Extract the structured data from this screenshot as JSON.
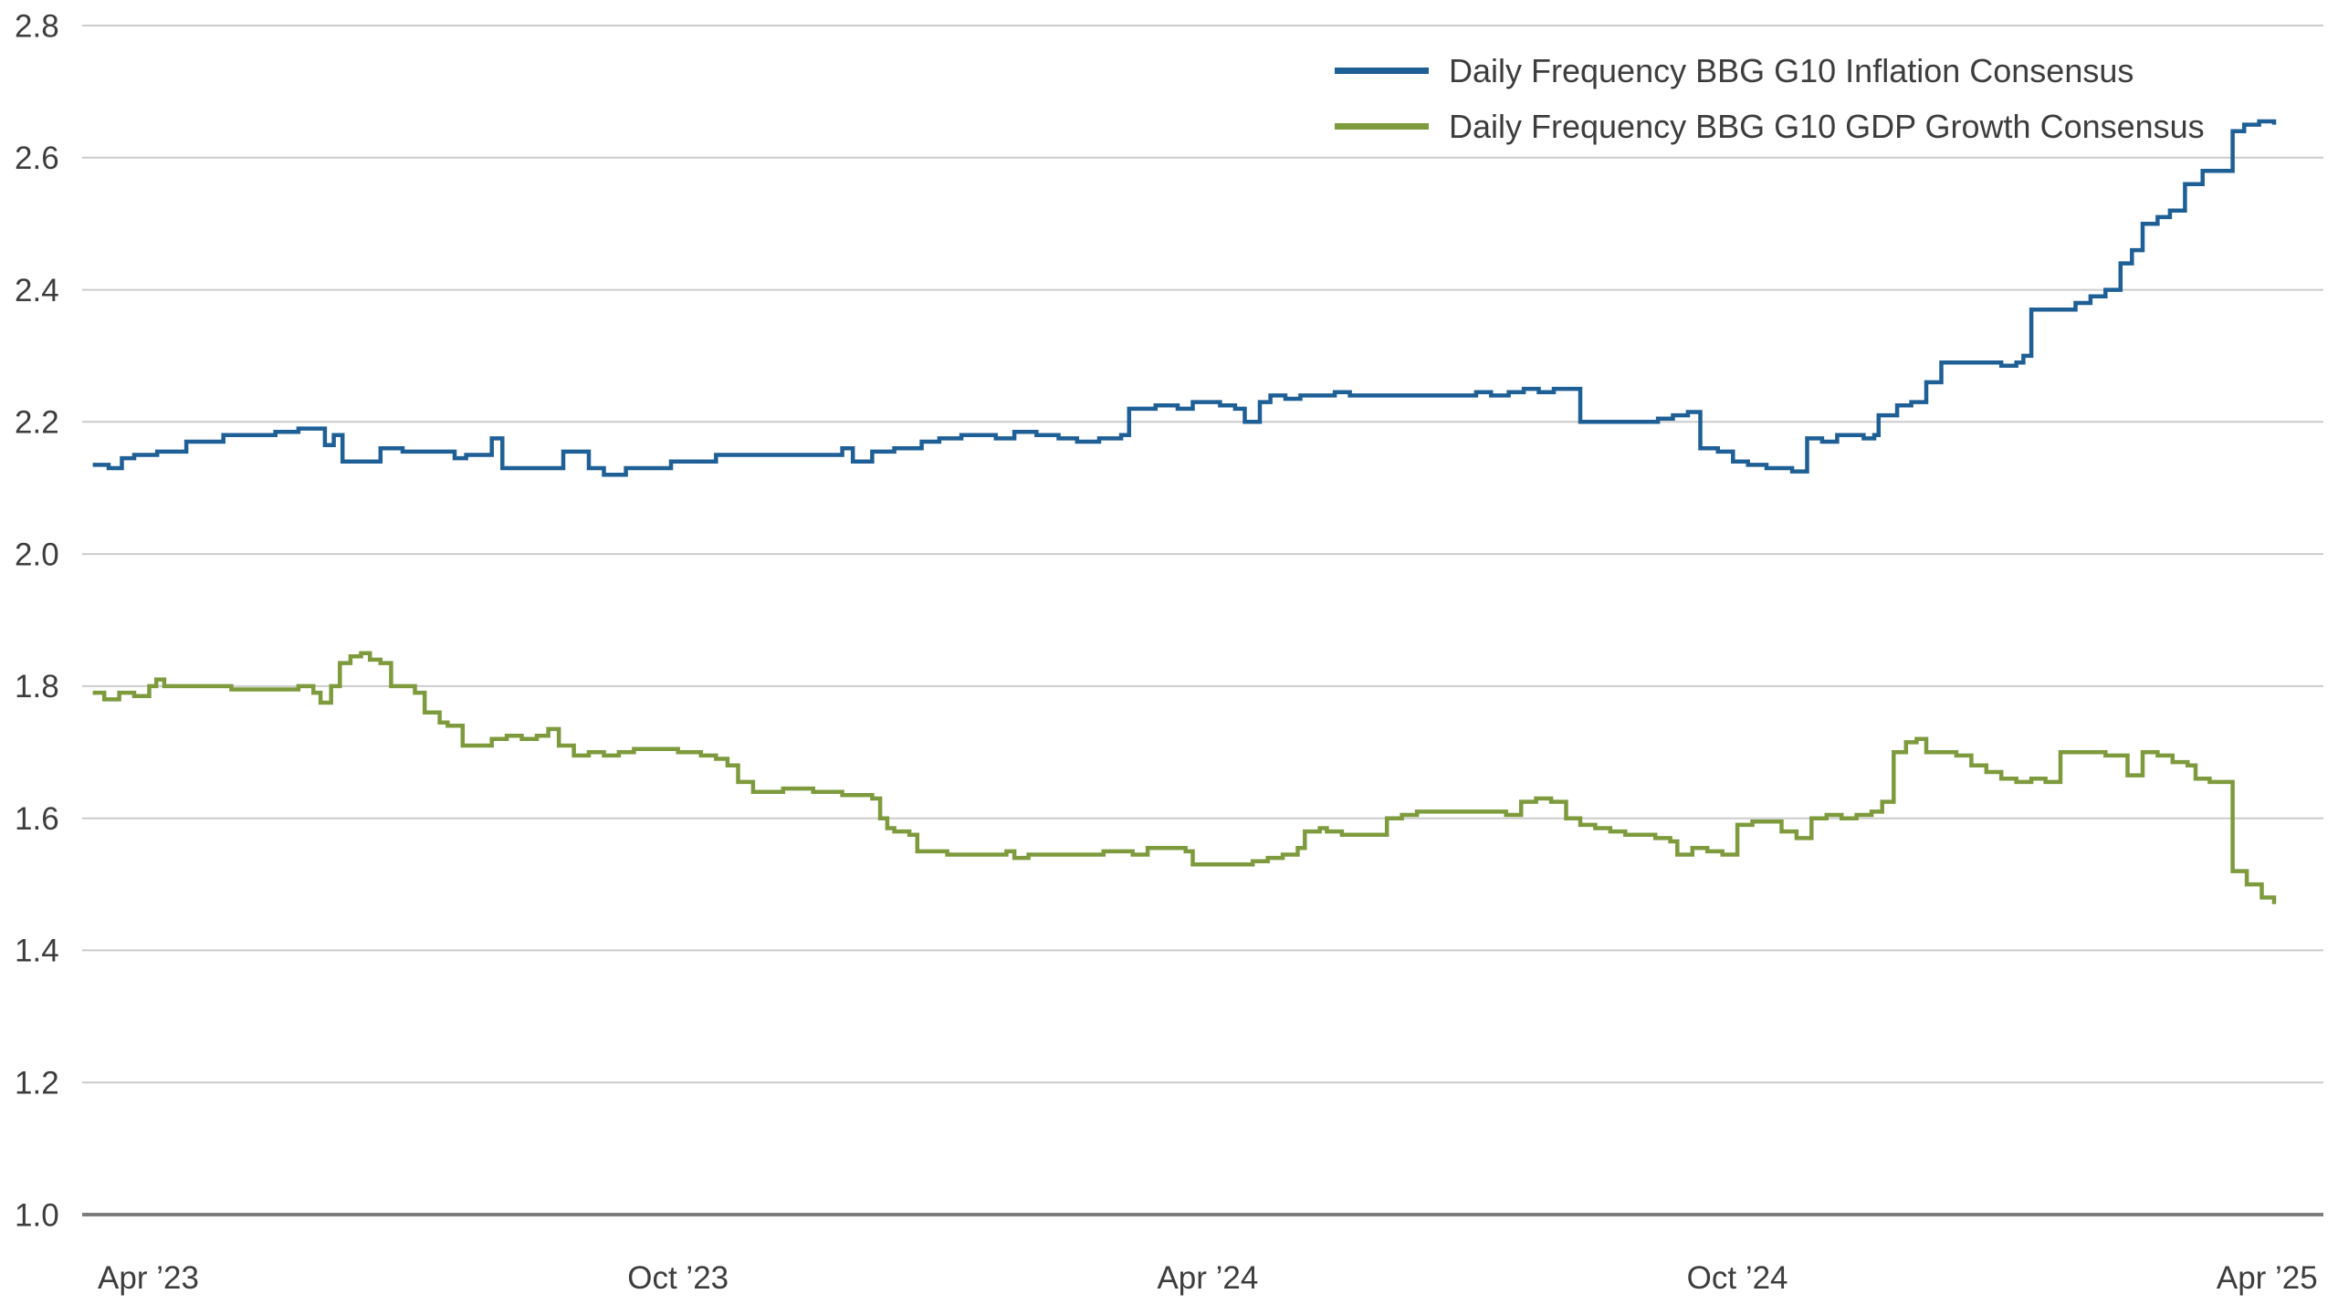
{
  "chart_data": {
    "type": "line",
    "title": "",
    "xlabel": "",
    "ylabel": "",
    "grid": "horizontal",
    "legend_position": "top-right-inside",
    "interpolation": "step-after",
    "x_unit": "months_since_apr_2023",
    "xlim": [
      -0.75,
      24.65
    ],
    "ylim": [
      1.0,
      2.8
    ],
    "y_ticks": [
      1.0,
      1.2,
      1.4,
      1.6,
      1.8,
      2.0,
      2.2,
      2.4,
      2.6,
      2.8
    ],
    "x_ticks": [
      {
        "m": 0,
        "label": "Apr ’23"
      },
      {
        "m": 6,
        "label": "Oct ’23"
      },
      {
        "m": 12,
        "label": "Apr ’24"
      },
      {
        "m": 18,
        "label": "Oct ’24"
      },
      {
        "m": 24,
        "label": "Apr ’25"
      }
    ],
    "colors": {
      "inflation_line": "#1e5f96",
      "gdp_line": "#7d9b3d",
      "gridline": "#cbcbcb",
      "axis_baseline": "#7d7d7d",
      "tick_text": "#3d3d3d"
    },
    "series": [
      {
        "name": "Daily Frequency BBG G10 Inflation Consensus",
        "color": "#1e5f96",
        "points": [
          [
            -0.63,
            2.135
          ],
          [
            -0.45,
            2.13
          ],
          [
            -0.3,
            2.145
          ],
          [
            -0.16,
            2.15
          ],
          [
            0.1,
            2.155
          ],
          [
            0.43,
            2.17
          ],
          [
            0.85,
            2.18
          ],
          [
            1.44,
            2.185
          ],
          [
            1.7,
            2.19
          ],
          [
            2.0,
            2.165
          ],
          [
            2.1,
            2.18
          ],
          [
            2.2,
            2.14
          ],
          [
            2.63,
            2.16
          ],
          [
            2.88,
            2.155
          ],
          [
            3.13,
            2.155
          ],
          [
            3.47,
            2.145
          ],
          [
            3.6,
            2.15
          ],
          [
            3.89,
            2.175
          ],
          [
            4.01,
            2.13
          ],
          [
            4.57,
            2.13
          ],
          [
            4.7,
            2.155
          ],
          [
            4.99,
            2.13
          ],
          [
            5.16,
            2.12
          ],
          [
            5.41,
            2.13
          ],
          [
            5.92,
            2.14
          ],
          [
            6.43,
            2.15
          ],
          [
            7.53,
            2.15
          ],
          [
            7.86,
            2.16
          ],
          [
            7.98,
            2.14
          ],
          [
            8.2,
            2.155
          ],
          [
            8.45,
            2.16
          ],
          [
            8.76,
            2.17
          ],
          [
            8.96,
            2.175
          ],
          [
            9.21,
            2.18
          ],
          [
            9.6,
            2.175
          ],
          [
            9.81,
            2.185
          ],
          [
            10.06,
            2.18
          ],
          [
            10.31,
            2.175
          ],
          [
            10.52,
            2.17
          ],
          [
            10.77,
            2.175
          ],
          [
            11.02,
            2.18
          ],
          [
            11.11,
            2.22
          ],
          [
            11.41,
            2.225
          ],
          [
            11.66,
            2.22
          ],
          [
            11.83,
            2.23
          ],
          [
            12.14,
            2.225
          ],
          [
            12.31,
            2.22
          ],
          [
            12.42,
            2.2
          ],
          [
            12.59,
            2.23
          ],
          [
            12.71,
            2.24
          ],
          [
            12.88,
            2.235
          ],
          [
            13.05,
            2.24
          ],
          [
            13.44,
            2.245
          ],
          [
            13.61,
            2.24
          ],
          [
            15.04,
            2.245
          ],
          [
            15.21,
            2.24
          ],
          [
            15.41,
            2.245
          ],
          [
            15.58,
            2.25
          ],
          [
            15.75,
            2.245
          ],
          [
            15.92,
            2.25
          ],
          [
            16.14,
            2.25
          ],
          [
            16.22,
            2.2
          ],
          [
            16.9,
            2.2
          ],
          [
            17.1,
            2.205
          ],
          [
            17.27,
            2.21
          ],
          [
            17.44,
            2.215
          ],
          [
            17.58,
            2.16
          ],
          [
            17.78,
            2.155
          ],
          [
            17.95,
            2.14
          ],
          [
            18.12,
            2.135
          ],
          [
            18.33,
            2.13
          ],
          [
            18.62,
            2.125
          ],
          [
            18.79,
            2.175
          ],
          [
            18.96,
            2.17
          ],
          [
            19.13,
            2.18
          ],
          [
            19.43,
            2.175
          ],
          [
            19.55,
            2.18
          ],
          [
            19.6,
            2.21
          ],
          [
            19.81,
            2.225
          ],
          [
            19.97,
            2.23
          ],
          [
            20.14,
            2.26
          ],
          [
            20.31,
            2.29
          ],
          [
            20.99,
            2.285
          ],
          [
            21.16,
            2.29
          ],
          [
            21.24,
            2.3
          ],
          [
            21.33,
            2.37
          ],
          [
            21.83,
            2.38
          ],
          [
            22.0,
            2.39
          ],
          [
            22.17,
            2.4
          ],
          [
            22.34,
            2.44
          ],
          [
            22.47,
            2.46
          ],
          [
            22.59,
            2.5
          ],
          [
            22.76,
            2.51
          ],
          [
            22.9,
            2.52
          ],
          [
            23.07,
            2.56
          ],
          [
            23.27,
            2.58
          ],
          [
            23.49,
            2.58
          ],
          [
            23.61,
            2.64
          ],
          [
            23.74,
            2.65
          ],
          [
            23.91,
            2.655
          ],
          [
            24.08,
            2.65
          ]
        ]
      },
      {
        "name": "Daily Frequency BBG G10 GDP Growth Consensus",
        "color": "#7d9b3d",
        "points": [
          [
            -0.63,
            1.79
          ],
          [
            -0.5,
            1.78
          ],
          [
            -0.33,
            1.79
          ],
          [
            -0.16,
            1.785
          ],
          [
            0.01,
            1.8
          ],
          [
            0.09,
            1.81
          ],
          [
            0.18,
            1.8
          ],
          [
            0.94,
            1.795
          ],
          [
            1.7,
            1.8
          ],
          [
            1.87,
            1.79
          ],
          [
            1.95,
            1.775
          ],
          [
            2.07,
            1.8
          ],
          [
            2.17,
            1.835
          ],
          [
            2.29,
            1.845
          ],
          [
            2.41,
            1.85
          ],
          [
            2.51,
            1.84
          ],
          [
            2.63,
            1.835
          ],
          [
            2.75,
            1.8
          ],
          [
            3.02,
            1.79
          ],
          [
            3.13,
            1.76
          ],
          [
            3.3,
            1.745
          ],
          [
            3.39,
            1.74
          ],
          [
            3.56,
            1.71
          ],
          [
            3.72,
            1.71
          ],
          [
            3.89,
            1.72
          ],
          [
            4.06,
            1.725
          ],
          [
            4.23,
            1.72
          ],
          [
            4.4,
            1.725
          ],
          [
            4.53,
            1.735
          ],
          [
            4.65,
            1.71
          ],
          [
            4.82,
            1.695
          ],
          [
            4.99,
            1.7
          ],
          [
            5.16,
            1.695
          ],
          [
            5.33,
            1.7
          ],
          [
            5.5,
            1.705
          ],
          [
            5.75,
            1.705
          ],
          [
            6.0,
            1.7
          ],
          [
            6.26,
            1.695
          ],
          [
            6.43,
            1.69
          ],
          [
            6.56,
            1.68
          ],
          [
            6.68,
            1.655
          ],
          [
            6.85,
            1.64
          ],
          [
            7.19,
            1.645
          ],
          [
            7.53,
            1.64
          ],
          [
            7.86,
            1.635
          ],
          [
            8.2,
            1.63
          ],
          [
            8.29,
            1.6
          ],
          [
            8.37,
            1.585
          ],
          [
            8.45,
            1.58
          ],
          [
            8.62,
            1.575
          ],
          [
            8.71,
            1.55
          ],
          [
            9.05,
            1.545
          ],
          [
            9.55,
            1.545
          ],
          [
            9.72,
            1.55
          ],
          [
            9.81,
            1.54
          ],
          [
            9.97,
            1.545
          ],
          [
            10.48,
            1.545
          ],
          [
            10.82,
            1.55
          ],
          [
            11.15,
            1.545
          ],
          [
            11.32,
            1.555
          ],
          [
            11.66,
            1.555
          ],
          [
            11.75,
            1.55
          ],
          [
            11.83,
            1.53
          ],
          [
            12.34,
            1.53
          ],
          [
            12.51,
            1.535
          ],
          [
            12.68,
            1.54
          ],
          [
            12.85,
            1.545
          ],
          [
            13.02,
            1.555
          ],
          [
            13.1,
            1.58
          ],
          [
            13.27,
            1.585
          ],
          [
            13.35,
            1.58
          ],
          [
            13.52,
            1.575
          ],
          [
            13.86,
            1.575
          ],
          [
            14.03,
            1.6
          ],
          [
            14.2,
            1.605
          ],
          [
            14.37,
            1.61
          ],
          [
            15.21,
            1.61
          ],
          [
            15.38,
            1.605
          ],
          [
            15.55,
            1.625
          ],
          [
            15.72,
            1.63
          ],
          [
            15.89,
            1.625
          ],
          [
            16.06,
            1.6
          ],
          [
            16.22,
            1.59
          ],
          [
            16.39,
            1.585
          ],
          [
            16.56,
            1.58
          ],
          [
            16.73,
            1.575
          ],
          [
            17.07,
            1.57
          ],
          [
            17.24,
            1.565
          ],
          [
            17.32,
            1.545
          ],
          [
            17.49,
            1.555
          ],
          [
            17.66,
            1.55
          ],
          [
            17.83,
            1.545
          ],
          [
            18.0,
            1.59
          ],
          [
            18.17,
            1.595
          ],
          [
            18.33,
            1.595
          ],
          [
            18.5,
            1.58
          ],
          [
            18.67,
            1.57
          ],
          [
            18.84,
            1.6
          ],
          [
            19.01,
            1.605
          ],
          [
            19.18,
            1.6
          ],
          [
            19.35,
            1.605
          ],
          [
            19.52,
            1.61
          ],
          [
            19.64,
            1.625
          ],
          [
            19.77,
            1.7
          ],
          [
            19.91,
            1.715
          ],
          [
            20.03,
            1.72
          ],
          [
            20.14,
            1.7
          ],
          [
            20.31,
            1.7
          ],
          [
            20.48,
            1.695
          ],
          [
            20.65,
            1.68
          ],
          [
            20.82,
            1.67
          ],
          [
            20.99,
            1.66
          ],
          [
            21.16,
            1.655
          ],
          [
            21.33,
            1.66
          ],
          [
            21.49,
            1.655
          ],
          [
            21.66,
            1.7
          ],
          [
            21.83,
            1.7
          ],
          [
            22.0,
            1.7
          ],
          [
            22.17,
            1.695
          ],
          [
            22.34,
            1.695
          ],
          [
            22.42,
            1.665
          ],
          [
            22.59,
            1.7
          ],
          [
            22.76,
            1.695
          ],
          [
            22.93,
            1.685
          ],
          [
            23.1,
            1.68
          ],
          [
            23.19,
            1.66
          ],
          [
            23.35,
            1.655
          ],
          [
            23.52,
            1.655
          ],
          [
            23.61,
            1.52
          ],
          [
            23.77,
            1.5
          ],
          [
            23.94,
            1.48
          ],
          [
            24.08,
            1.47
          ]
        ]
      }
    ]
  },
  "legend": {
    "items": [
      {
        "label": "Daily Frequency BBG G10 Inflation Consensus",
        "color": "#1e5f96"
      },
      {
        "label": "Daily Frequency BBG G10 GDP Growth Consensus",
        "color": "#7d9b3d"
      }
    ]
  }
}
